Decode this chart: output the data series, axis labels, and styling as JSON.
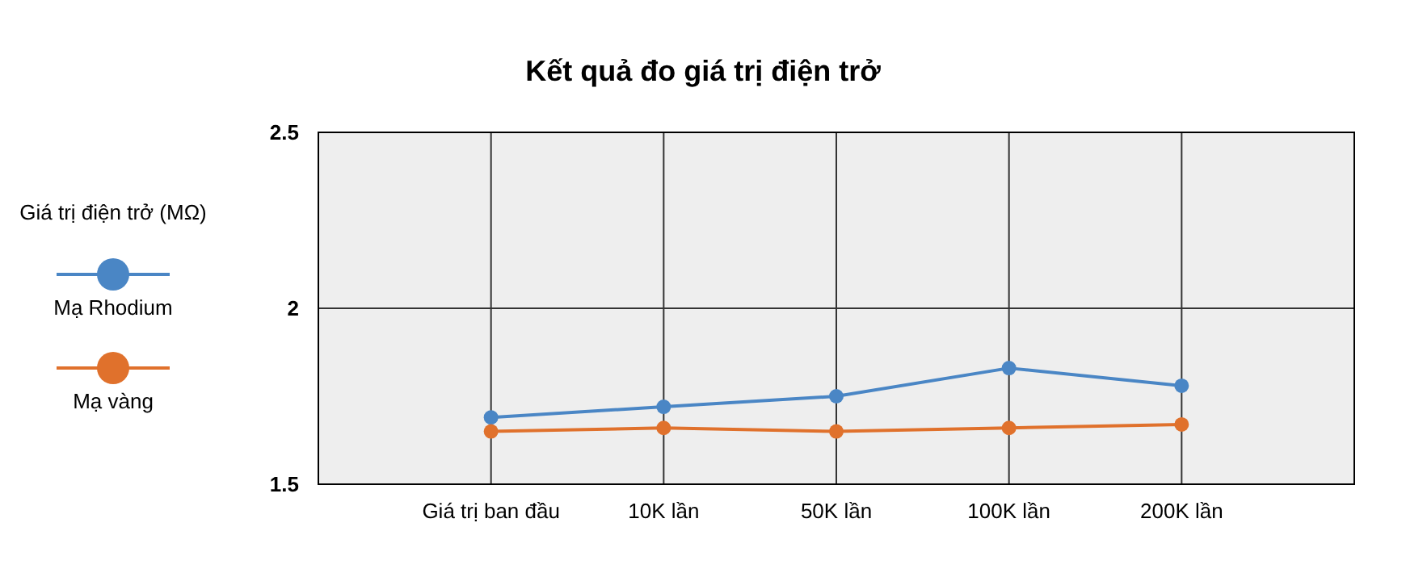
{
  "chart_data": {
    "type": "line",
    "title": "Kết quả đo giá trị điện trở",
    "legend_title": "Giá trị điện trở (MΩ)",
    "categories": [
      "Giá trị ban đầu",
      "10K lần",
      "50K lần",
      "100K lần",
      "200K lần"
    ],
    "series": [
      {
        "name": "Mạ Rhodium",
        "color": "#4a86c5",
        "values": [
          1.69,
          1.72,
          1.75,
          1.83,
          1.78
        ]
      },
      {
        "name": "Mạ vàng",
        "color": "#e0712c",
        "values": [
          1.65,
          1.66,
          1.65,
          1.66,
          1.67
        ]
      }
    ],
    "ylim": [
      1.5,
      2.5
    ],
    "yticks": [
      1.5,
      2,
      2.5
    ],
    "grid": true,
    "legend": "left",
    "marker": "circle",
    "line_style": "solid"
  }
}
